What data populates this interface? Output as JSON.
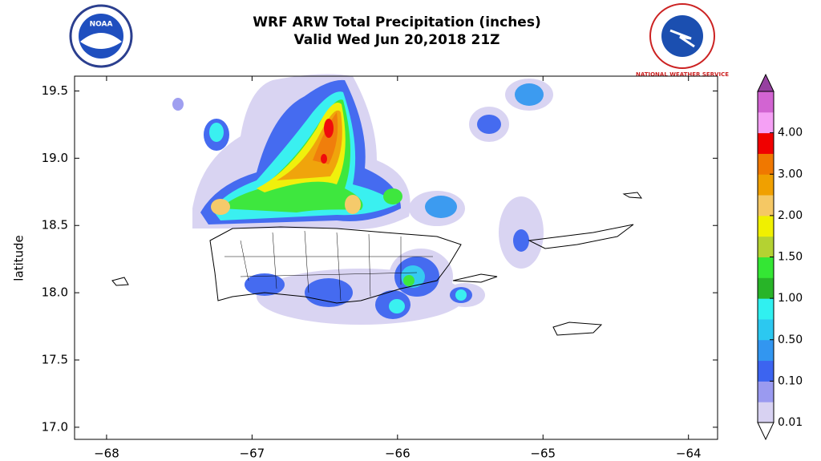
{
  "map": {
    "title": "WRF ARW Total Precipitation (inches)",
    "subtitle": "Valid Wed Jun 20,2018 21Z",
    "ylabel": "latitude",
    "logo_left": "NOAA",
    "logo_right": "NATIONAL WEATHER SERVICE",
    "xlim": [
      -68.22,
      -63.8
    ],
    "ylim": [
      16.91,
      19.61
    ],
    "xticks": [
      {
        "value": -68,
        "label": "−68"
      },
      {
        "value": -67,
        "label": "−67"
      },
      {
        "value": -66,
        "label": "−66"
      },
      {
        "value": -65,
        "label": "−65"
      },
      {
        "value": -64,
        "label": "−64"
      }
    ],
    "yticks": [
      {
        "value": 17,
        "label": "17.0"
      },
      {
        "value": 17.5,
        "label": "17.5"
      },
      {
        "value": 18,
        "label": "18.0"
      },
      {
        "value": 18.5,
        "label": "18.5"
      },
      {
        "value": 19,
        "label": "19.0"
      },
      {
        "value": 19.5,
        "label": "19.5"
      }
    ],
    "colorbar": {
      "colors": [
        "#d8d2f2",
        "#9a9af0",
        "#3c64f0",
        "#3296f0",
        "#2cc8f0",
        "#30f0f0",
        "#28b428",
        "#34e634",
        "#b4d232",
        "#f0f000",
        "#f5c864",
        "#f0a000",
        "#f07800",
        "#f00000",
        "#f5a0f5",
        "#d264d2"
      ],
      "over_color": "#9640a0",
      "ticks": [
        {
          "value": 0.01,
          "label": "0.01"
        },
        {
          "value": 0.1,
          "label": "0.10"
        },
        {
          "value": 0.5,
          "label": "0.50"
        },
        {
          "value": 1,
          "label": "1.00"
        },
        {
          "value": 1.5,
          "label": "1.50"
        },
        {
          "value": 2,
          "label": "2.00"
        },
        {
          "value": 3,
          "label": "3.00"
        },
        {
          "value": 4,
          "label": "4.00"
        }
      ]
    }
  }
}
